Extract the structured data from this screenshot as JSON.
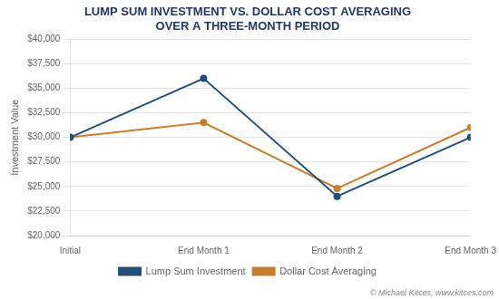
{
  "chart_data": {
    "type": "line",
    "title": "LUMP SUM INVESTMENT VS. DOLLAR COST AVERAGING\nOVER A THREE-MONTH PERIOD",
    "ylabel": "Investment Value",
    "categories": [
      "Initial",
      "End Month 1",
      "End Month 2",
      "End Month 3"
    ],
    "series": [
      {
        "name": "Lump Sum Investment",
        "color": "#1F4E79",
        "marker": "circle",
        "values": [
          30000,
          36000,
          24000,
          30000
        ]
      },
      {
        "name": "Dollar Cost Averaging",
        "color": "#C87D2F",
        "marker": "circle",
        "values": [
          30000,
          31500,
          24800,
          31000
        ]
      }
    ],
    "ylim": [
      20000,
      40000
    ],
    "yticks": [
      {
        "value": 20000,
        "label": "$20,000"
      },
      {
        "value": 22500,
        "label": "$22,500"
      },
      {
        "value": 25000,
        "label": "$25,000"
      },
      {
        "value": 27500,
        "label": "$27,500"
      },
      {
        "value": 30000,
        "label": "$30,000"
      },
      {
        "value": 32500,
        "label": "$32,500"
      },
      {
        "value": 35000,
        "label": "$35,000"
      },
      {
        "value": 37500,
        "label": "$37,500"
      },
      {
        "value": 40000,
        "label": "$40,000"
      }
    ],
    "grid": true,
    "legend": "bottom",
    "annotations": [
      "© Michael Kitces, www.kitces.com"
    ]
  }
}
